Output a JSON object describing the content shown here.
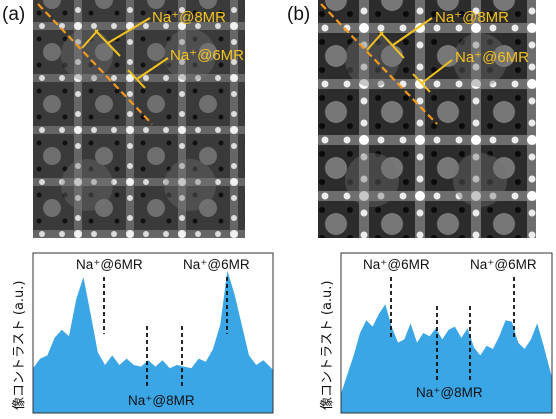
{
  "figure": {
    "panels": [
      {
        "label": "(a)",
        "image_annotations": [
          "Na⁺@8MR",
          "Na⁺@6MR"
        ],
        "plot_labels": {
          "top_left": "Na⁺@6MR",
          "top_right": "Na⁺@6MR",
          "bottom": "Na⁺@8MR"
        },
        "ylabel": "像コントラスト (a.u.)"
      },
      {
        "label": "(b)",
        "image_annotations": [
          "Na⁺@8MR",
          "Na⁺@6MR"
        ],
        "plot_labels": {
          "top_left": "Na⁺@6MR",
          "top_right": "Na⁺@6MR",
          "bottom": "Na⁺@8MR"
        },
        "ylabel": "像コントラスト (a.u.)"
      }
    ]
  },
  "chart_data": [
    {
      "type": "area",
      "color": "#3aa6e6",
      "x": [
        0,
        0.03,
        0.06,
        0.09,
        0.12,
        0.15,
        0.18,
        0.21,
        0.24,
        0.27,
        0.3,
        0.33,
        0.36,
        0.39,
        0.42,
        0.45,
        0.48,
        0.51,
        0.54,
        0.57,
        0.6,
        0.63,
        0.66,
        0.69,
        0.72,
        0.75,
        0.78,
        0.81,
        0.84,
        0.87,
        0.9,
        0.93,
        0.96,
        1.0
      ],
      "values": [
        0.28,
        0.34,
        0.36,
        0.47,
        0.52,
        0.48,
        0.71,
        0.85,
        0.62,
        0.38,
        0.3,
        0.36,
        0.3,
        0.34,
        0.3,
        0.29,
        0.33,
        0.29,
        0.33,
        0.28,
        0.3,
        0.29,
        0.28,
        0.34,
        0.32,
        0.4,
        0.55,
        0.89,
        0.74,
        0.55,
        0.36,
        0.3,
        0.33,
        0.27
      ]
    },
    {
      "type": "area",
      "color": "#3aa6e6",
      "x": [
        0,
        0.03,
        0.06,
        0.09,
        0.12,
        0.15,
        0.18,
        0.21,
        0.24,
        0.27,
        0.3,
        0.33,
        0.36,
        0.39,
        0.42,
        0.45,
        0.48,
        0.51,
        0.54,
        0.57,
        0.6,
        0.63,
        0.66,
        0.69,
        0.72,
        0.75,
        0.78,
        0.81,
        0.84,
        0.87,
        0.9,
        0.93,
        0.96,
        1.0
      ],
      "values": [
        0.12,
        0.24,
        0.36,
        0.5,
        0.58,
        0.54,
        0.62,
        0.68,
        0.54,
        0.44,
        0.46,
        0.56,
        0.44,
        0.5,
        0.48,
        0.53,
        0.46,
        0.52,
        0.54,
        0.47,
        0.53,
        0.41,
        0.36,
        0.42,
        0.4,
        0.48,
        0.58,
        0.57,
        0.44,
        0.4,
        0.46,
        0.56,
        0.42,
        0.22
      ]
    }
  ]
}
